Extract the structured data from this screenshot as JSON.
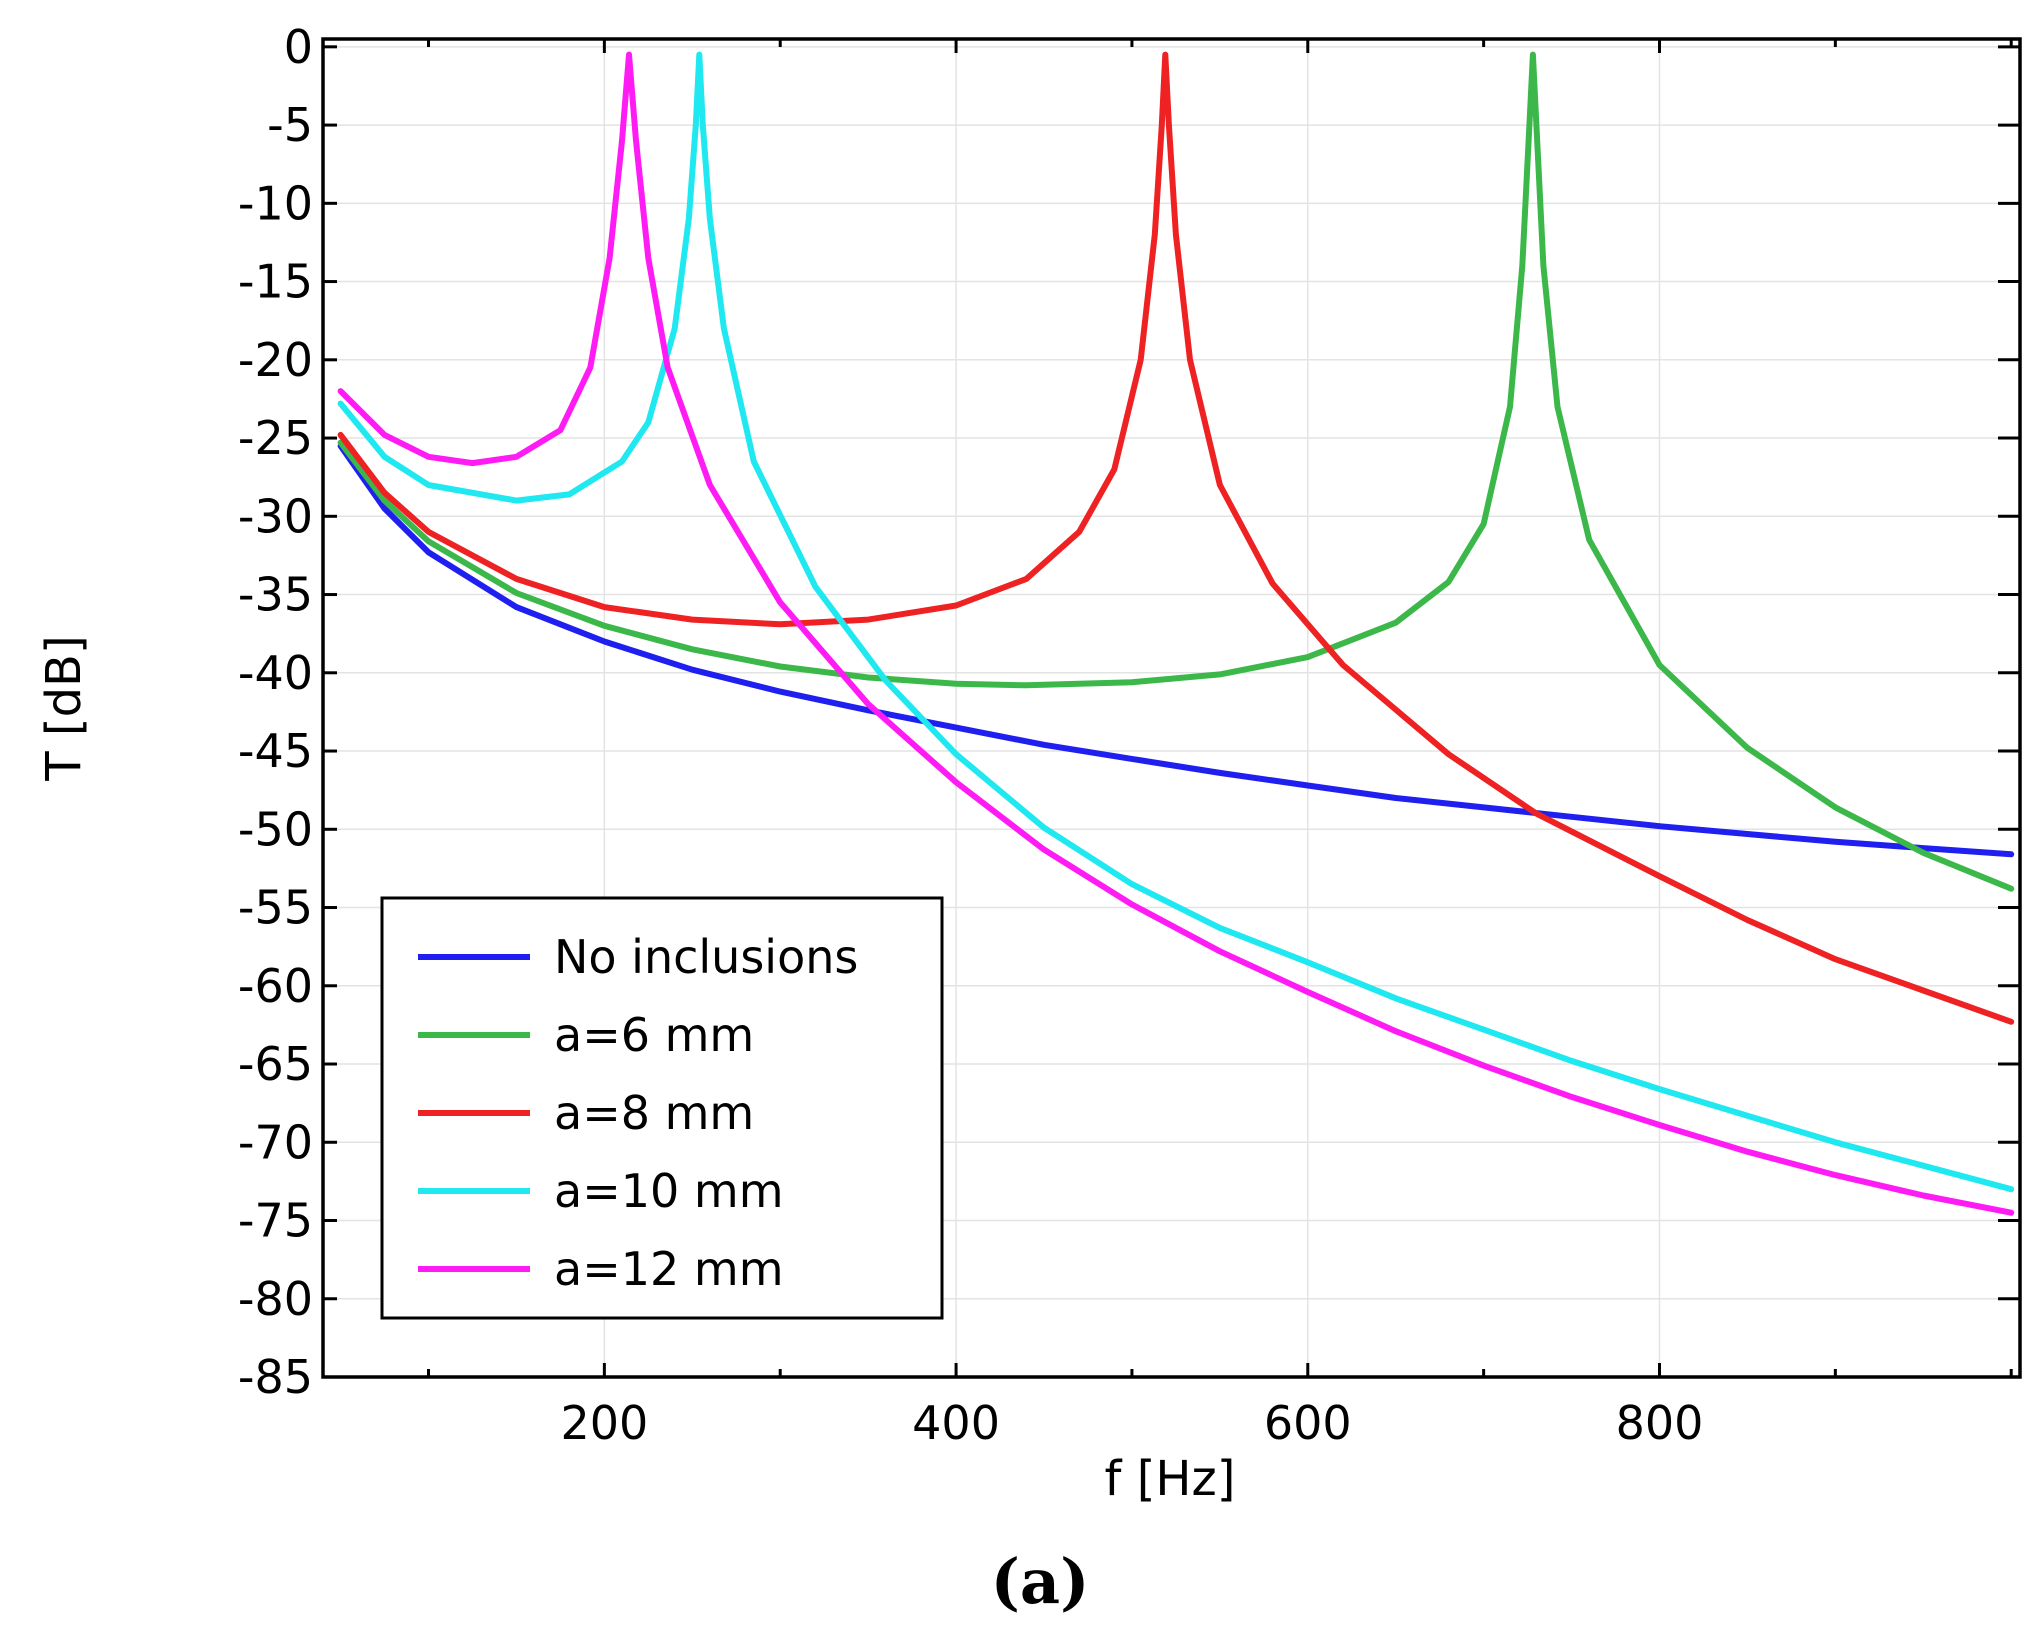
{
  "chart_data": {
    "type": "line",
    "title": "",
    "xlabel": "f [Hz]",
    "ylabel": "T [dB]",
    "xlim": [
      40,
      1005
    ],
    "ylim": [
      -85,
      0.5
    ],
    "xticks": [
      200,
      400,
      600,
      800
    ],
    "yticks": [
      0,
      -5,
      -10,
      -15,
      -20,
      -25,
      -30,
      -35,
      -40,
      -45,
      -50,
      -55,
      -60,
      -65,
      -70,
      -75,
      -80,
      -85
    ],
    "grid": true,
    "legend_position": "bottom-left",
    "caption": "(a)",
    "series": [
      {
        "name": "No inclusions",
        "color": "#1f1fef",
        "points": [
          [
            50,
            -25.5
          ],
          [
            75,
            -29.5
          ],
          [
            100,
            -32.3
          ],
          [
            150,
            -35.8
          ],
          [
            200,
            -38
          ],
          [
            250,
            -39.8
          ],
          [
            300,
            -41.2
          ],
          [
            350,
            -42.4
          ],
          [
            400,
            -43.5
          ],
          [
            450,
            -44.6
          ],
          [
            500,
            -45.5
          ],
          [
            550,
            -46.4
          ],
          [
            600,
            -47.2
          ],
          [
            650,
            -48
          ],
          [
            700,
            -48.6
          ],
          [
            750,
            -49.2
          ],
          [
            800,
            -49.8
          ],
          [
            850,
            -50.3
          ],
          [
            900,
            -50.8
          ],
          [
            950,
            -51.2
          ],
          [
            1000,
            -51.6
          ]
        ]
      },
      {
        "name": "a=6 mm",
        "color": "#3cb84a",
        "points": [
          [
            50,
            -25.3
          ],
          [
            75,
            -29
          ],
          [
            100,
            -31.6
          ],
          [
            150,
            -34.9
          ],
          [
            200,
            -37
          ],
          [
            250,
            -38.5
          ],
          [
            300,
            -39.6
          ],
          [
            350,
            -40.3
          ],
          [
            400,
            -40.7
          ],
          [
            440,
            -40.8
          ],
          [
            500,
            -40.6
          ],
          [
            550,
            -40.1
          ],
          [
            600,
            -39
          ],
          [
            650,
            -36.8
          ],
          [
            680,
            -34.2
          ],
          [
            700,
            -30.5
          ],
          [
            715,
            -23
          ],
          [
            722,
            -14
          ],
          [
            726,
            -5
          ],
          [
            728,
            -0.5
          ],
          [
            730,
            -5
          ],
          [
            734,
            -14
          ],
          [
            742,
            -23
          ],
          [
            760,
            -31.5
          ],
          [
            800,
            -39.5
          ],
          [
            850,
            -44.8
          ],
          [
            900,
            -48.6
          ],
          [
            950,
            -51.5
          ],
          [
            1000,
            -53.8
          ]
        ]
      },
      {
        "name": "a=8 mm",
        "color": "#ee2222",
        "points": [
          [
            50,
            -24.8
          ],
          [
            75,
            -28.5
          ],
          [
            100,
            -31
          ],
          [
            150,
            -34
          ],
          [
            200,
            -35.8
          ],
          [
            250,
            -36.6
          ],
          [
            300,
            -36.9
          ],
          [
            350,
            -36.6
          ],
          [
            400,
            -35.7
          ],
          [
            440,
            -34
          ],
          [
            470,
            -31
          ],
          [
            490,
            -27
          ],
          [
            505,
            -20
          ],
          [
            513,
            -12
          ],
          [
            517,
            -5
          ],
          [
            519,
            -0.5
          ],
          [
            521,
            -5
          ],
          [
            525,
            -12
          ],
          [
            533,
            -20
          ],
          [
            550,
            -28
          ],
          [
            580,
            -34.3
          ],
          [
            620,
            -39.5
          ],
          [
            680,
            -45.2
          ],
          [
            730,
            -49
          ],
          [
            800,
            -53
          ],
          [
            850,
            -55.8
          ],
          [
            900,
            -58.3
          ],
          [
            950,
            -60.3
          ],
          [
            1000,
            -62.3
          ]
        ]
      },
      {
        "name": "a=10 mm",
        "color": "#1fe8f0",
        "points": [
          [
            50,
            -22.8
          ],
          [
            75,
            -26.2
          ],
          [
            100,
            -28
          ],
          [
            150,
            -29
          ],
          [
            180,
            -28.6
          ],
          [
            210,
            -26.5
          ],
          [
            225,
            -24
          ],
          [
            240,
            -18
          ],
          [
            248,
            -11
          ],
          [
            252,
            -5
          ],
          [
            254,
            -0.5
          ],
          [
            256,
            -5
          ],
          [
            260,
            -11
          ],
          [
            268,
            -18
          ],
          [
            285,
            -26.5
          ],
          [
            320,
            -34.5
          ],
          [
            360,
            -40.5
          ],
          [
            400,
            -45.2
          ],
          [
            450,
            -49.9
          ],
          [
            500,
            -53.5
          ],
          [
            550,
            -56.3
          ],
          [
            600,
            -58.5
          ],
          [
            650,
            -60.8
          ],
          [
            700,
            -62.8
          ],
          [
            750,
            -64.8
          ],
          [
            800,
            -66.6
          ],
          [
            850,
            -68.3
          ],
          [
            900,
            -70
          ],
          [
            950,
            -71.5
          ],
          [
            1000,
            -73
          ]
        ]
      },
      {
        "name": "a=12 mm",
        "color": "#ff1cf4",
        "points": [
          [
            50,
            -22
          ],
          [
            75,
            -24.8
          ],
          [
            100,
            -26.2
          ],
          [
            125,
            -26.6
          ],
          [
            150,
            -26.2
          ],
          [
            175,
            -24.5
          ],
          [
            192,
            -20.5
          ],
          [
            203,
            -13.5
          ],
          [
            210,
            -6
          ],
          [
            214,
            -0.5
          ],
          [
            218,
            -6
          ],
          [
            225,
            -13.5
          ],
          [
            236,
            -20.5
          ],
          [
            260,
            -28
          ],
          [
            300,
            -35.5
          ],
          [
            350,
            -42
          ],
          [
            400,
            -47
          ],
          [
            450,
            -51.3
          ],
          [
            500,
            -54.8
          ],
          [
            550,
            -57.8
          ],
          [
            600,
            -60.4
          ],
          [
            650,
            -62.9
          ],
          [
            700,
            -65.1
          ],
          [
            750,
            -67.1
          ],
          [
            800,
            -68.9
          ],
          [
            850,
            -70.6
          ],
          [
            900,
            -72.1
          ],
          [
            950,
            -73.4
          ],
          [
            1000,
            -74.5
          ]
        ]
      }
    ]
  }
}
